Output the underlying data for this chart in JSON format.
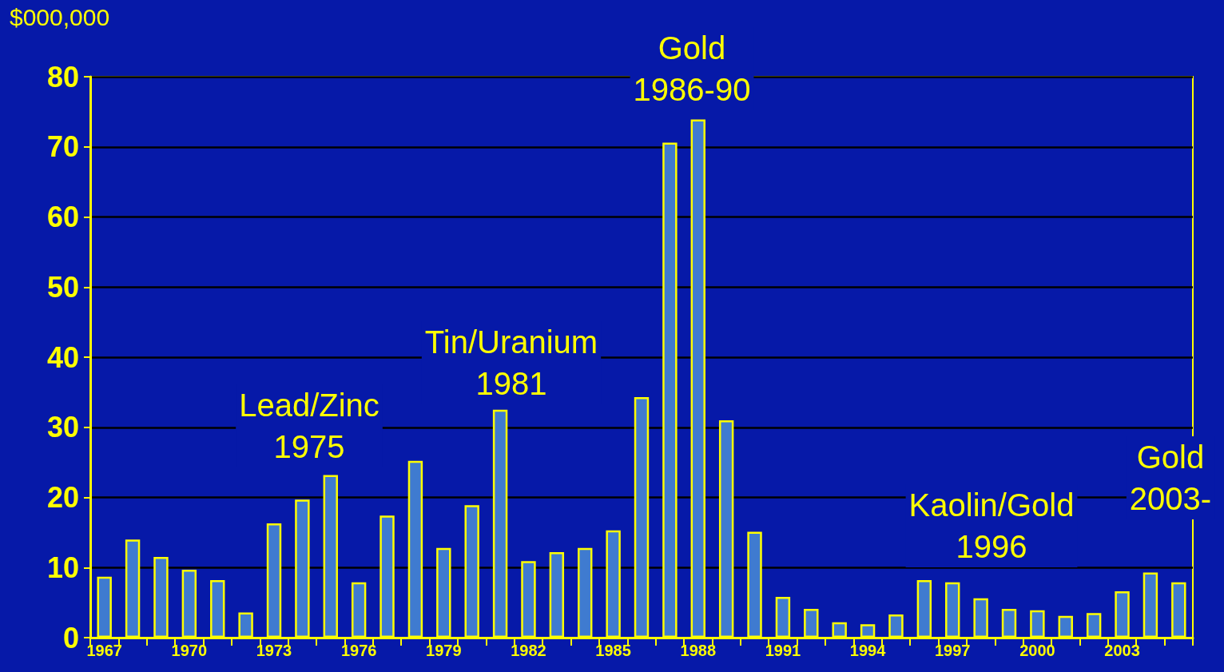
{
  "chart_data": {
    "type": "bar",
    "ylabel": "$000,000",
    "categories": [
      "1967",
      null,
      null,
      "1970",
      null,
      null,
      "1973",
      null,
      null,
      "1976",
      null,
      null,
      "1979",
      null,
      null,
      "1982",
      null,
      null,
      "1985",
      null,
      null,
      "1988",
      null,
      null,
      "1991",
      null,
      null,
      "1994",
      null,
      null,
      "1997",
      null,
      null,
      "2000",
      null,
      null,
      "2003",
      null,
      null
    ],
    "values": [
      8.7,
      14.0,
      11.5,
      9.7,
      8.2,
      3.6,
      16.3,
      19.7,
      23.2,
      7.9,
      17.4,
      25.2,
      12.8,
      18.9,
      32.5,
      10.9,
      12.2,
      12.8,
      15.3,
      34.3,
      70.6,
      73.9,
      31.0,
      15.1,
      5.8,
      4.1,
      2.2,
      1.9,
      3.3,
      8.2,
      7.9,
      5.6,
      4.1,
      3.9,
      3.1,
      3.5,
      6.6,
      9.3,
      7.9
    ],
    "color": "#3f7bd0",
    "ylim": [
      0,
      80
    ],
    "yticks": [
      0,
      10,
      20,
      30,
      40,
      50,
      60,
      70,
      80
    ],
    "grid": "y",
    "annotations": [
      "Gold\n1986-90",
      "Tin/Uranium\n1981",
      "Lead/Zinc\n1975",
      "Kaolin/Gold\n1996",
      "Gold\n2003-"
    ]
  }
}
